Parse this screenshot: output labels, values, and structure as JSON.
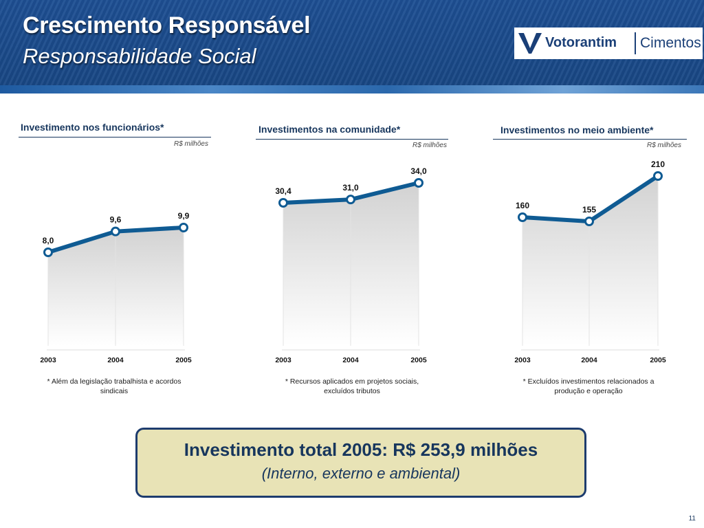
{
  "header": {
    "title": "Crescimento Responsável",
    "subtitle": "Responsabilidade Social"
  },
  "logo": {
    "brand": "Votorantim",
    "division": "Cimentos"
  },
  "colors": {
    "header": "#1d4f93",
    "line": "#0f5b93",
    "text": "#17365d",
    "callout_bg": "#e8e3b6"
  },
  "chart_data": [
    {
      "type": "line",
      "title": "Investimento nos funcionários*",
      "unit": "R$ milhões",
      "categories": [
        "2003",
        "2004",
        "2005"
      ],
      "values": [
        8.0,
        9.6,
        9.9
      ],
      "labels": [
        "8,0",
        "9,6",
        "9,9"
      ],
      "footnote": "* Além da legislação trabalhista e acordos sindicais"
    },
    {
      "type": "line",
      "title": "Investimentos na comunidade*",
      "unit": "R$ milhões",
      "categories": [
        "2003",
        "2004",
        "2005"
      ],
      "values": [
        30.4,
        31.0,
        34.0
      ],
      "labels": [
        "30,4",
        "31,0",
        "34,0"
      ],
      "footnote": "* Recursos aplicados em projetos sociais, excluídos tributos"
    },
    {
      "type": "line",
      "title": "Investimentos no meio ambiente*",
      "unit": "R$ milhões",
      "categories": [
        "2003",
        "2004",
        "2005"
      ],
      "values": [
        160,
        155,
        210
      ],
      "labels": [
        "160",
        "155",
        "210"
      ],
      "footnote": "* Excluídos investimentos relacionados a produção e operação"
    }
  ],
  "callout": {
    "line1": "Investimento total 2005: R$ 253,9 milhões",
    "line2": "(Interno, externo e ambiental)"
  },
  "page_number": "11"
}
